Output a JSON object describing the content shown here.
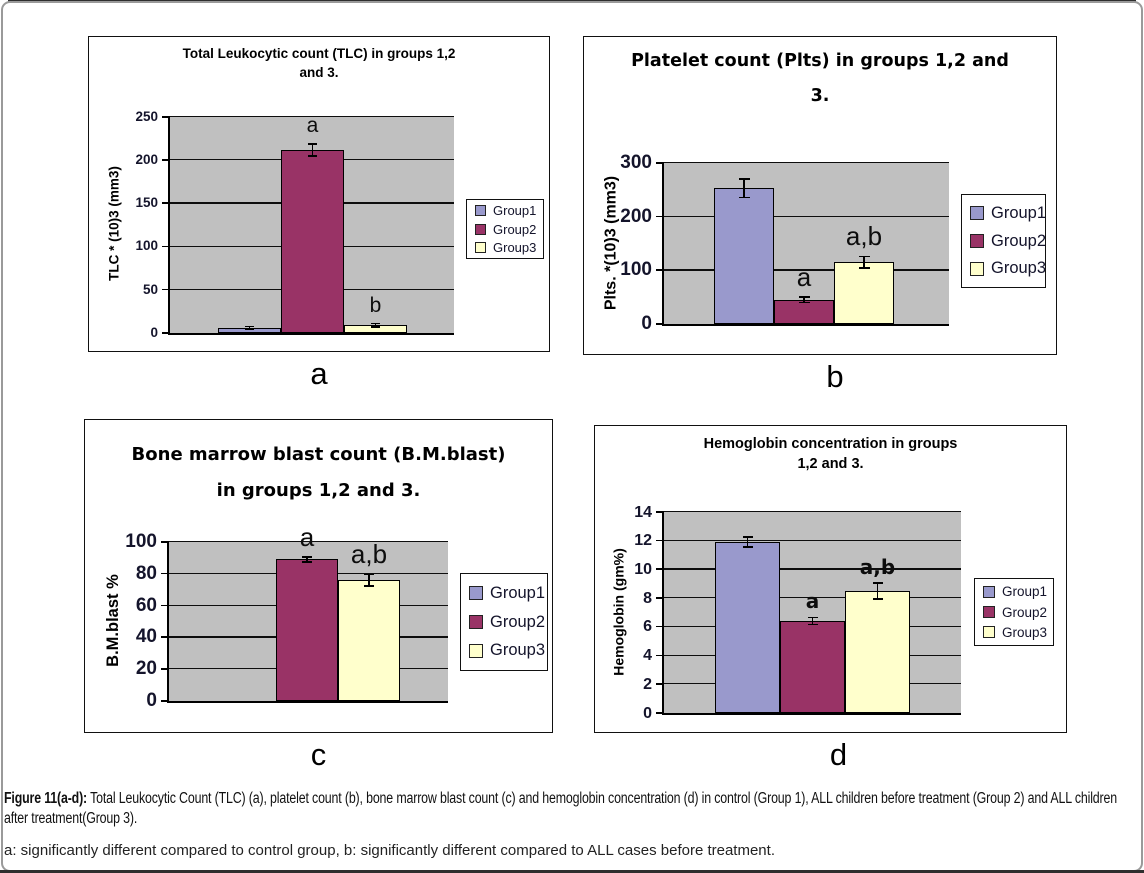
{
  "page": {
    "caption": {
      "figure_label": "Figure 11(a-d):",
      "text": " Total Leukocytic Count (TLC) (a), platelet count (b), bone marrow blast count (c) and hemoglobin concentration (d) in control (Group 1), ALL children before treatment (Group 2) and ALL children after treatment(Group 3).",
      "note": "a: significantly different compared to control group, b: significantly different compared to ALL cases before treatment."
    },
    "panel_letters": [
      "a",
      "b",
      "c",
      "d"
    ]
  },
  "colors": {
    "series": [
      "#9999CC",
      "#993366",
      "#FFFFCC"
    ],
    "plot_bg": "#C0C0C0",
    "axis": "#000000",
    "tick_text": "#14142b"
  },
  "legend": {
    "labels": [
      "Group1",
      "Group2",
      "Group3"
    ]
  },
  "chart_data": [
    {
      "id": "a",
      "type": "bar",
      "title_lines": [
        "Total Leukocytic count (TLC) in groups 1,2",
        "and 3."
      ],
      "ylabel": "TLC * (10)3 (mm3)",
      "xlabel": "",
      "ylim": [
        0,
        250
      ],
      "ystep": 50,
      "grid": true,
      "legend_position": "right",
      "categories": [
        "Group1",
        "Group2",
        "Group3"
      ],
      "values": [
        6,
        212,
        9
      ],
      "errors": [
        1.5,
        7,
        2
      ],
      "sig_labels": [
        "",
        "a",
        "b"
      ]
    },
    {
      "id": "b",
      "type": "bar",
      "title_lines": [
        "Platelet count (Plts) in groups 1,2 and",
        "3."
      ],
      "ylabel": "Plts. *(10)3 (mm3)",
      "xlabel": "",
      "ylim": [
        0,
        300
      ],
      "ystep": 100,
      "grid": true,
      "legend_position": "right",
      "categories": [
        "Group1",
        "Group2",
        "Group3"
      ],
      "values": [
        253,
        45,
        115
      ],
      "errors": [
        17,
        5,
        11
      ],
      "sig_labels": [
        "",
        "a",
        "a,b"
      ]
    },
    {
      "id": "c",
      "type": "bar",
      "title_lines": [
        "Bone marrow blast count (B.M.blast)",
        "in groups 1,2 and 3."
      ],
      "ylabel": "B.M.blast %",
      "xlabel": "",
      "ylim": [
        0,
        100
      ],
      "ystep": 20,
      "grid": true,
      "legend_position": "right",
      "categories": [
        "Group1",
        "Group2",
        "Group3"
      ],
      "values": [
        0,
        89,
        76
      ],
      "errors": [
        0,
        1.5,
        3.5
      ],
      "sig_labels": [
        "",
        "a",
        "a,b"
      ]
    },
    {
      "id": "d",
      "type": "bar",
      "title_lines": [
        "Hemoglobin concentration in groups",
        "1,2 and 3."
      ],
      "ylabel": "Hemoglobin (gm%)",
      "xlabel": "",
      "ylim": [
        0,
        14
      ],
      "ystep": 2,
      "grid": true,
      "legend_position": "right",
      "categories": [
        "Group1",
        "Group2",
        "Group3"
      ],
      "values": [
        11.9,
        6.4,
        8.5
      ],
      "errors": [
        0.35,
        0.25,
        0.55
      ],
      "sig_labels": [
        "",
        "a",
        "a,b"
      ]
    }
  ]
}
